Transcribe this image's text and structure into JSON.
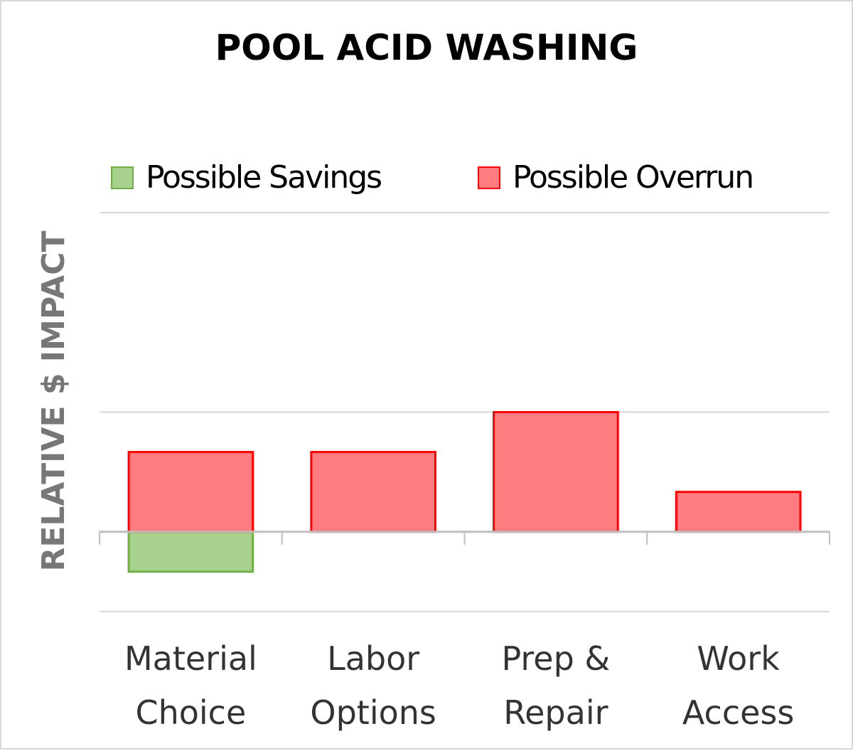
{
  "chart_data": {
    "type": "bar",
    "title": "POOL  ACID WASHING",
    "ylabel": "RELATIVE $ IMPACT",
    "xlabel": "",
    "categories": [
      [
        "Material",
        "Choice"
      ],
      [
        "Labor",
        "Options"
      ],
      [
        "Prep &",
        "Repair"
      ],
      [
        "Work",
        "Access"
      ]
    ],
    "series": [
      {
        "name": "Possible Savings",
        "values": [
          -1,
          0,
          0,
          0
        ],
        "color": "#A9D18E",
        "border": "#70AD47"
      },
      {
        "name": "Possible Overrun",
        "values": [
          2,
          2,
          3,
          1
        ],
        "color": "#FF7C80",
        "border": "#FF0000"
      }
    ],
    "ylim": [
      -2,
      8
    ],
    "gridlines": [
      -2,
      3,
      8
    ],
    "grid": true,
    "legend": "top",
    "stacked": true
  }
}
